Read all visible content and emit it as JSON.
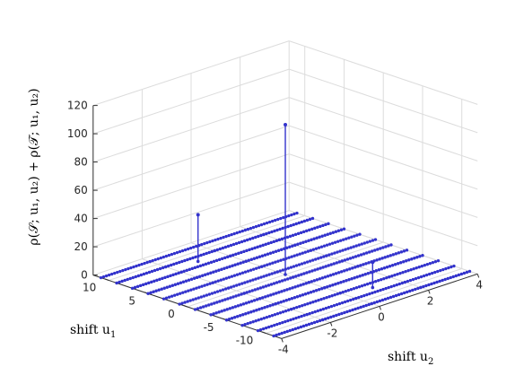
{
  "chart_data": {
    "type": "stem3",
    "title": "",
    "xlabel": "shift u",
    "xlabel_sub": "1",
    "ylabel": "shift u",
    "ylabel_sub": "2",
    "zlabel": "ρ(𝒮; u₁, u₂) + ρ(𝒯; u₁, u₂)",
    "xlim": [
      -12,
      12
    ],
    "ylim": [
      -4,
      4
    ],
    "zlim": [
      0,
      120
    ],
    "xticks": [
      "10",
      "5",
      "0",
      "-5",
      "-10"
    ],
    "yticks": [
      "-4",
      "-2",
      "0",
      "2",
      "4"
    ],
    "zticks": [
      "0",
      "20",
      "40",
      "60",
      "80",
      "100",
      "120"
    ],
    "grid": true,
    "stem_color": "#3333cc",
    "u1_values": [
      -11,
      -9,
      -7,
      -5,
      -3,
      -1,
      1,
      3,
      5,
      7,
      9,
      11
    ],
    "u2_values": [
      -3,
      -1,
      1,
      3
    ],
    "points_per_row": 19,
    "nonzero_stems": [
      {
        "u1": 0,
        "u2": 0,
        "z": 106
      },
      {
        "u1": 8,
        "u2": -1,
        "z": 33
      },
      {
        "u1": -8,
        "u2": 1,
        "z": 18
      }
    ]
  }
}
